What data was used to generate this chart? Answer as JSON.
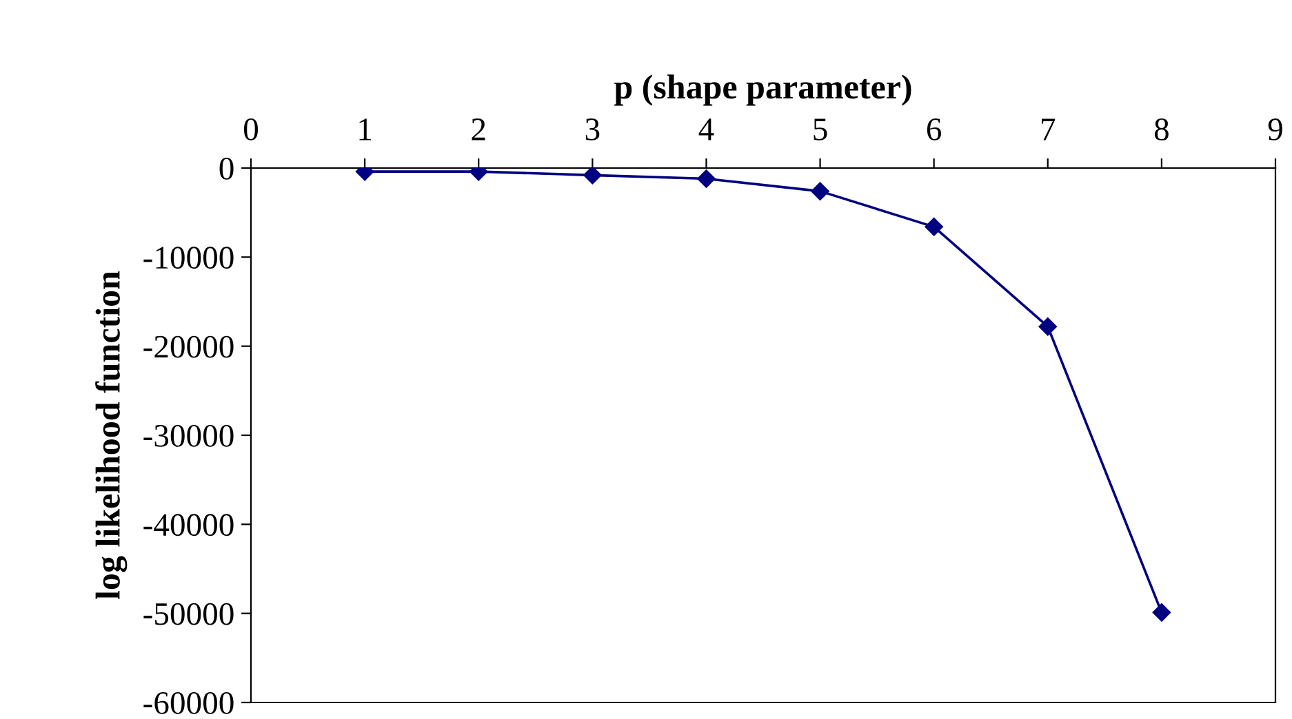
{
  "chart_data": {
    "type": "line",
    "xlabel": "p (shape parameter)",
    "ylabel": "log likelihood function",
    "x": [
      1,
      2,
      3,
      4,
      5,
      6,
      7,
      8
    ],
    "series": [
      {
        "color": "#000080",
        "values": [
          -400,
          -400,
          -800,
          -1200,
          -2600,
          -6600,
          -17800,
          -49900
        ]
      }
    ],
    "xlim": [
      0,
      9
    ],
    "xticks": [
      0,
      1,
      2,
      3,
      4,
      5,
      6,
      7,
      8,
      9
    ],
    "ylim": [
      -60000,
      0
    ],
    "yticks": [
      -60000,
      -50000,
      -40000,
      -30000,
      -20000,
      -10000,
      0
    ],
    "marker": "diamond",
    "line_style": "solid",
    "grid": false,
    "legend": false
  }
}
